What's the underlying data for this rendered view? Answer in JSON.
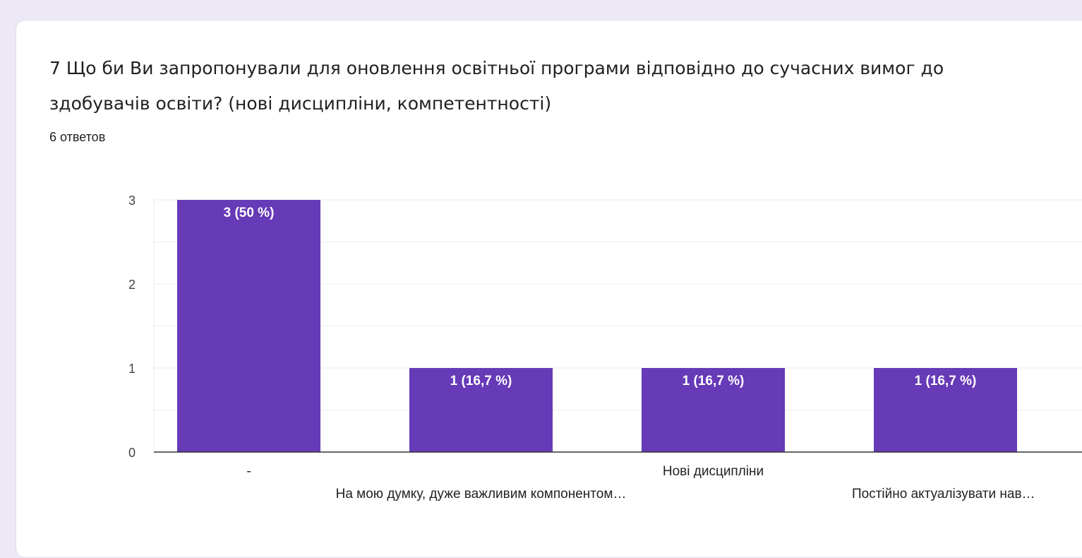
{
  "question": {
    "title": "7 Що би Ви запропонували для оновлення освітньої програми відповідно до сучасних вимог до здобувачів освіти? (нові дисципліни, компетентності)",
    "responses": "6 ответов"
  },
  "chart_data": {
    "type": "bar",
    "title": "",
    "xlabel": "",
    "ylabel": "",
    "categories": [
      "-",
      "На мою думку, дуже важливим компонентом…",
      "Нові дисципліни",
      "Постійно актуалізувати нав…"
    ],
    "values": [
      3,
      1,
      1,
      1
    ],
    "data_labels": [
      "3 (50 %)",
      "1 (16,7 %)",
      "1 (16,7 %)",
      "1 (16,7 %)"
    ],
    "ylim": [
      0,
      3
    ],
    "yticks": [
      "0",
      "1",
      "2",
      "3"
    ],
    "grid": true,
    "bar_color": "#673ab7"
  }
}
